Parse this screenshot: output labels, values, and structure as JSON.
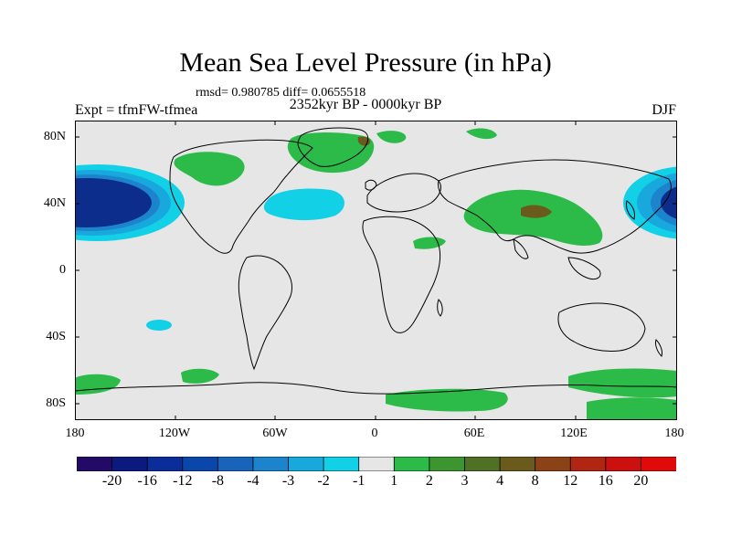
{
  "title": "Mean Sea Level Pressure (in hPa)",
  "stats": "rmsd= 0.980785 diff= 0.0655518",
  "period": "2352kyr BP - 0000kyr BP",
  "experiment": "Expt = tfmFW-tfmea",
  "season": "DJF",
  "lat_labels": [
    "80N",
    "40N",
    "0",
    "40S",
    "80S"
  ],
  "lon_labels": [
    "180",
    "120W",
    "60W",
    "0",
    "60E",
    "120E",
    "180"
  ],
  "colorbar": {
    "labels": [
      "-20",
      "-16",
      "-12",
      "-8",
      "-4",
      "-3",
      "-2",
      "-1",
      "1",
      "2",
      "3",
      "4",
      "8",
      "12",
      "16",
      "20"
    ],
    "colors": [
      "#220a66",
      "#0c1a80",
      "#0a2d99",
      "#0a47aa",
      "#1a63bb",
      "#1c84cc",
      "#18a8dd",
      "#12d0e6",
      "#e6e6e6",
      "#2cbb48",
      "#3c9530",
      "#507026",
      "#6a5a1c",
      "#8a4216",
      "#b02612",
      "#cc1010",
      "#e00a0a"
    ]
  },
  "colors": {
    "land_ocean": "#e6e6e6",
    "deep_low": "#0c2d8c",
    "low_mid": "#1a63bb",
    "low_light": "#18a8dd",
    "low_pale": "#12d0e6",
    "high_green": "#2cbb48",
    "high_brown": "#6a5a1c",
    "coastline": "#000000"
  }
}
